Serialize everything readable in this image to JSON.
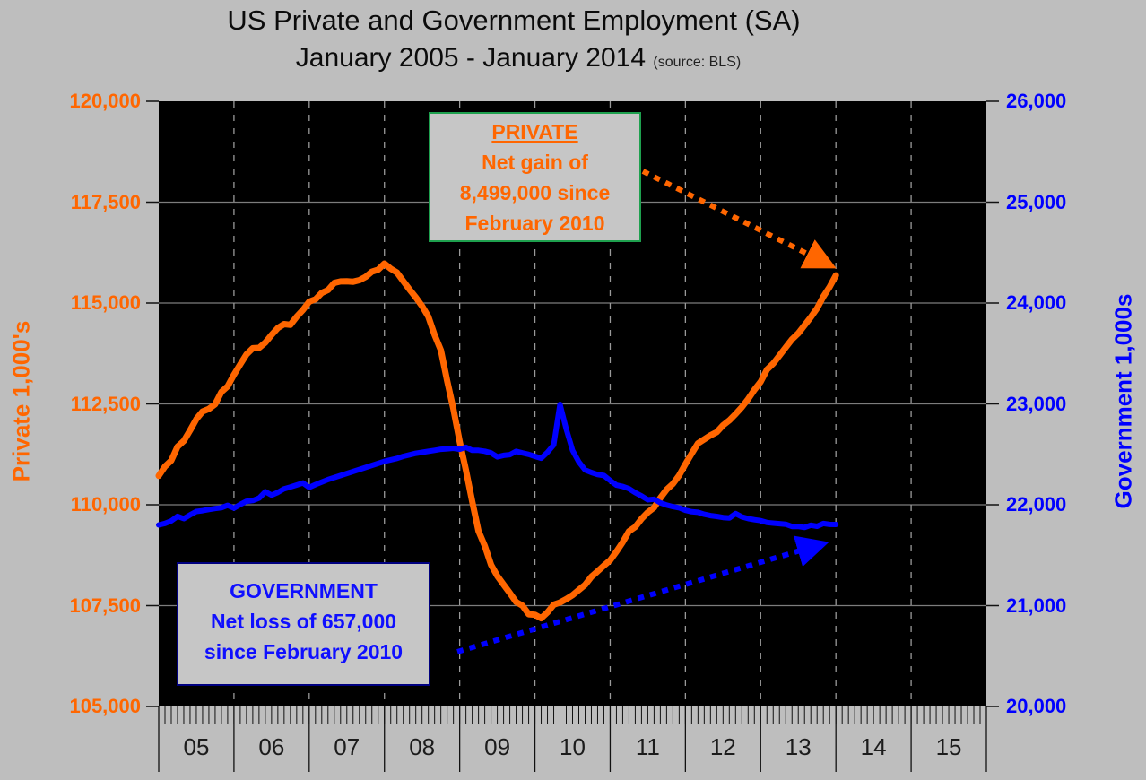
{
  "title": {
    "line1": "US Private and Government Employment (SA)",
    "line2": "January 2005 - January 2014",
    "source": "(source: BLS)"
  },
  "left_axis": {
    "title": "Private 1,000's",
    "color": "#ff6600",
    "ticks": [
      "120,000",
      "117,500",
      "115,000",
      "112,500",
      "110,000",
      "107,500",
      "105,000"
    ]
  },
  "right_axis": {
    "title": "Government 1,000s",
    "color": "#0000ff",
    "ticks": [
      "26,000",
      "25,000",
      "24,000",
      "23,000",
      "22,000",
      "21,000",
      "20,000"
    ]
  },
  "x_axis": {
    "years": [
      "05",
      "06",
      "07",
      "08",
      "09",
      "10",
      "11",
      "12",
      "13",
      "14",
      "15"
    ]
  },
  "annotations": {
    "private": {
      "head": "PRIVATE",
      "line1": "Net gain of",
      "line2": "8,499,000 since",
      "line3": "February 2010"
    },
    "government": {
      "head": "GOVERNMENT",
      "line1": "Net loss of 657,000",
      "line2": "since February 2010"
    }
  },
  "chart_data": {
    "type": "line",
    "title": "US Private and Government Employment (SA), January 2005 - January 2014",
    "source": "BLS",
    "x_start": "2005-01",
    "x_frequency": "monthly",
    "x_axis_year_cells": [
      "05",
      "06",
      "07",
      "08",
      "09",
      "10",
      "11",
      "12",
      "13",
      "14",
      "15"
    ],
    "left_ylim": [
      105000,
      120000
    ],
    "right_ylim": [
      20000,
      26000
    ],
    "left_tick_step": 2500,
    "right_tick_step": 1000,
    "plot_background": "black",
    "grid": {
      "horizontal": "solid-gray",
      "vertical": "dashed-gray-at-year-boundaries"
    },
    "series": [
      {
        "name": "Private employment (1,000's, left axis)",
        "color": "#ff6600",
        "axis": "left",
        "values": [
          110718,
          110949,
          111095,
          111440,
          111583,
          111844,
          112124,
          112311,
          112375,
          112491,
          112795,
          112935,
          113224,
          113480,
          113727,
          113880,
          113889,
          114019,
          114211,
          114382,
          114478,
          114459,
          114659,
          114829,
          115034,
          115091,
          115251,
          115322,
          115500,
          115536,
          115537,
          115529,
          115566,
          115650,
          115775,
          115826,
          115977,
          115852,
          115755,
          115543,
          115335,
          115141,
          114925,
          114662,
          114207,
          113829,
          113070,
          112377,
          111569,
          110857,
          110082,
          109349,
          108980,
          108513,
          108236,
          108021,
          107812,
          107588,
          107500,
          107287,
          107273,
          107187,
          107332,
          107525,
          107578,
          107662,
          107759,
          107889,
          108015,
          108215,
          108352,
          108494,
          108627,
          108838,
          109071,
          109343,
          109450,
          109651,
          109810,
          109932,
          110168,
          110376,
          110518,
          110728,
          111008,
          111270,
          111520,
          111620,
          111720,
          111800,
          111970,
          112090,
          112250,
          112420,
          112620,
          112850,
          113050,
          113350,
          113500,
          113700,
          113900,
          114100,
          114250,
          114450,
          114650,
          114870,
          115160,
          115400,
          115686
        ]
      },
      {
        "name": "Government employment (1,000s, right axis)",
        "color": "#0000ff",
        "axis": "right",
        "values": [
          21800,
          21815,
          21840,
          21885,
          21862,
          21900,
          21933,
          21941,
          21953,
          21963,
          21971,
          21995,
          21966,
          22003,
          22035,
          22042,
          22066,
          22129,
          22095,
          22123,
          22158,
          22176,
          22196,
          22216,
          22172,
          22200,
          22225,
          22250,
          22270,
          22290,
          22310,
          22330,
          22350,
          22370,
          22390,
          22410,
          22430,
          22445,
          22460,
          22480,
          22495,
          22510,
          22520,
          22530,
          22540,
          22550,
          22555,
          22560,
          22550,
          22570,
          22540,
          22540,
          22531,
          22514,
          22475,
          22490,
          22497,
          22530,
          22514,
          22500,
          22480,
          22461,
          22520,
          22594,
          22996,
          22750,
          22540,
          22425,
          22345,
          22320,
          22300,
          22290,
          22240,
          22195,
          22181,
          22159,
          22120,
          22087,
          22049,
          22055,
          22020,
          21997,
          21981,
          21970,
          21945,
          21931,
          21925,
          21906,
          21892,
          21884,
          21874,
          21868,
          21913,
          21880,
          21863,
          21852,
          21843,
          21824,
          21818,
          21812,
          21807,
          21785,
          21785,
          21775,
          21797,
          21787,
          21814,
          21805,
          21804
        ]
      }
    ],
    "annotations": [
      {
        "text": "PRIVATE Net gain of 8,499,000 since February 2010",
        "arrow_to": "end of private line (Jan 2014)"
      },
      {
        "text": "GOVERNMENT Net loss of 657,000 since February 2010",
        "arrow_to": "end of government line (Jan 2014)"
      }
    ]
  },
  "colors": {
    "page_background": "#bebebe",
    "plot_background": "#000000",
    "private_line": "#ff6600",
    "government_line": "#0000ff",
    "private_box_border": "#1ea04e",
    "government_box_border": "#000080"
  }
}
